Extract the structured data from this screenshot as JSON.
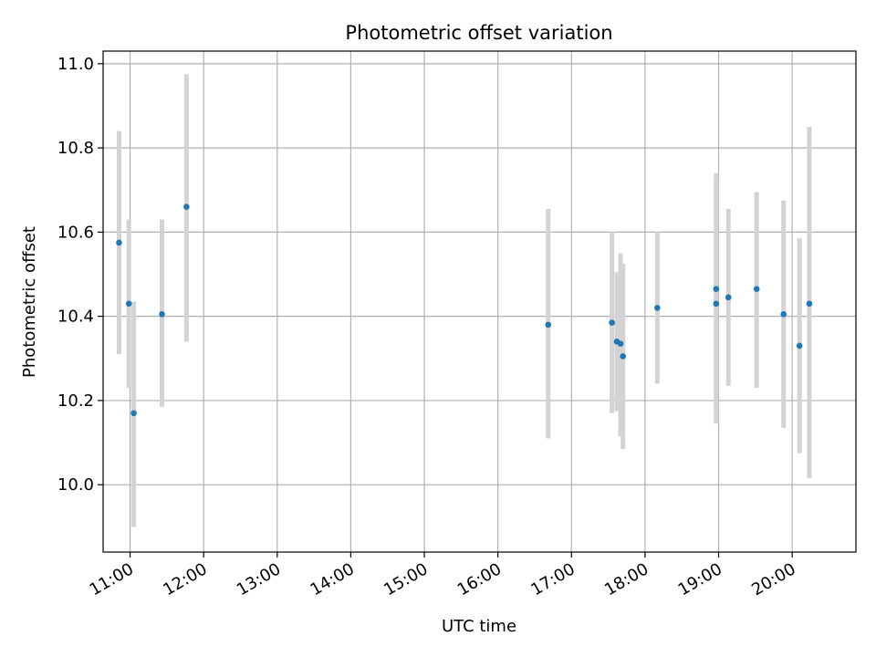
{
  "chart_data": {
    "type": "scatter",
    "title": "Photometric offset variation",
    "xlabel": "UTC time",
    "ylabel": "Photometric offset",
    "x_axis_kind": "time",
    "xlim": [
      "10:38",
      "20:52"
    ],
    "ylim": [
      9.84,
      11.03
    ],
    "xticks": [
      "11:00",
      "12:00",
      "13:00",
      "14:00",
      "15:00",
      "16:00",
      "17:00",
      "18:00",
      "19:00",
      "20:00"
    ],
    "yticks": [
      10.0,
      10.2,
      10.4,
      10.6,
      10.8,
      11.0
    ],
    "ytick_labels": [
      "10.0",
      "10.2",
      "10.4",
      "10.6",
      "10.8",
      "11.0"
    ],
    "grid": true,
    "marker_color": "#1f77b4",
    "errorbar_color": "#d3d3d3",
    "series": [
      {
        "points": [
          {
            "x": "10:51",
            "y": 10.575,
            "err_low": 10.31,
            "err_high": 10.84
          },
          {
            "x": "10:59",
            "y": 10.43,
            "err_low": 10.23,
            "err_high": 10.63
          },
          {
            "x": "11:03",
            "y": 10.17,
            "err_low": 9.9,
            "err_high": 10.435
          },
          {
            "x": "11:26",
            "y": 10.405,
            "err_low": 10.185,
            "err_high": 10.63
          },
          {
            "x": "11:46",
            "y": 10.66,
            "err_low": 10.34,
            "err_high": 10.975
          },
          {
            "x": "16:41",
            "y": 10.38,
            "err_low": 10.11,
            "err_high": 10.655
          },
          {
            "x": "17:33",
            "y": 10.385,
            "err_low": 10.17,
            "err_high": 10.6
          },
          {
            "x": "17:37",
            "y": 10.34,
            "err_low": 10.175,
            "err_high": 10.505
          },
          {
            "x": "17:40",
            "y": 10.335,
            "err_low": 10.115,
            "err_high": 10.55
          },
          {
            "x": "17:42",
            "y": 10.305,
            "err_low": 10.085,
            "err_high": 10.525
          },
          {
            "x": "18:10",
            "y": 10.42,
            "err_low": 10.24,
            "err_high": 10.6
          },
          {
            "x": "18:58",
            "y": 10.465,
            "err_low": 10.19,
            "err_high": 10.74
          },
          {
            "x": "18:58",
            "y": 10.43,
            "err_low": 10.145,
            "err_high": 10.71
          },
          {
            "x": "19:08",
            "y": 10.445,
            "err_low": 10.235,
            "err_high": 10.655
          },
          {
            "x": "19:31",
            "y": 10.465,
            "err_low": 10.23,
            "err_high": 10.695
          },
          {
            "x": "19:53",
            "y": 10.405,
            "err_low": 10.135,
            "err_high": 10.675
          },
          {
            "x": "20:06",
            "y": 10.33,
            "err_low": 10.075,
            "err_high": 10.585
          },
          {
            "x": "20:14",
            "y": 10.43,
            "err_low": 10.015,
            "err_high": 10.85
          }
        ]
      }
    ]
  }
}
